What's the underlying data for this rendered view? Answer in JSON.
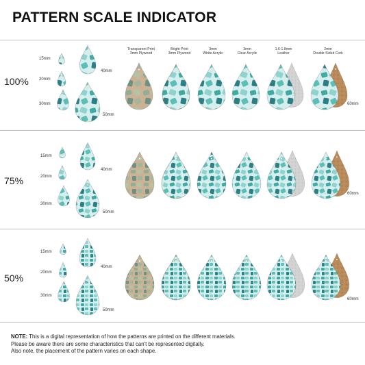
{
  "title": "PATTERN SCALE INDICATOR",
  "materials": [
    {
      "line1": "Transparent Print",
      "line2": "3mm Plywood"
    },
    {
      "line1": "Bright Print",
      "line2": "3mm Plywood"
    },
    {
      "line1": "3mm",
      "line2": "White Acrylic"
    },
    {
      "line1": "3mm",
      "line2": "Clear Acrylic"
    },
    {
      "line1": "1.6-1.8mm",
      "line2": "Leather"
    },
    {
      "line1": "2mm",
      "line2": "Double Sided Cork"
    }
  ],
  "rows": [
    {
      "scale": "100%",
      "sizes": [
        "15mm",
        "20mm",
        "30mm",
        "40mm",
        "50mm"
      ],
      "right_size": "60mm"
    },
    {
      "scale": "75%",
      "sizes": [
        "15mm",
        "20mm",
        "30mm",
        "40mm",
        "50mm"
      ],
      "right_size": "60mm"
    },
    {
      "scale": "50%",
      "sizes": [
        "15mm",
        "20mm",
        "30mm",
        "40mm",
        "50mm"
      ],
      "right_size": "60mm"
    }
  ],
  "note": {
    "label": "NOTE:",
    "line1": "This is a digital representation of how the patterns are printed on the different materials.",
    "line2": "Please be aware there are some characteristics that can't be represented digitally.",
    "line3": "Also note, the placement of the pattern varies on each shape."
  },
  "colors": {
    "teal": "#3fa9a3",
    "aqua": "#8fd3cf",
    "deep_teal": "#2d7f86",
    "plywood": "#c9ab8a",
    "cork": "#b98a5a",
    "leather_grey": "#cfcfcf"
  }
}
